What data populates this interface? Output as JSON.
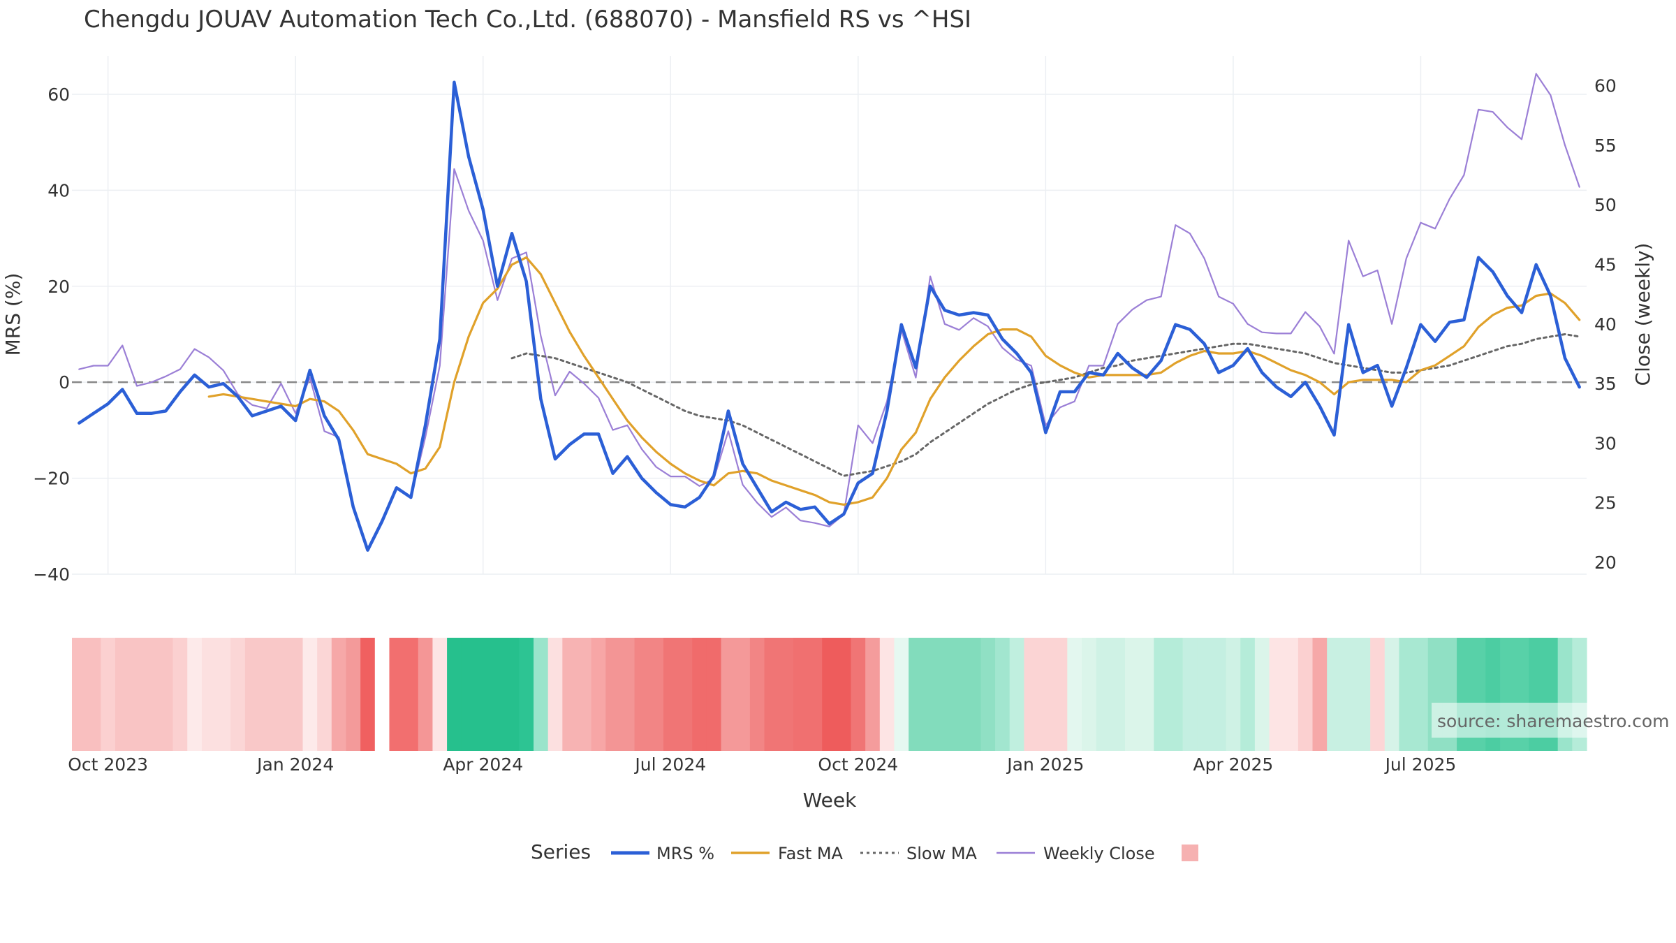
{
  "chart_data": {
    "type": "line",
    "title": "Chengdu JOUAV Automation Tech Co.,Ltd. (688070) - Mansfield RS vs ^HSI",
    "xlabel": "Week",
    "ylabel_left": "MRS (%)",
    "ylabel_right": "Close (weekly)",
    "ylim_left": [
      -40,
      68
    ],
    "ylim_right": [
      19,
      62.5
    ],
    "y_ticks_left": [
      "60",
      "40",
      "20",
      "0",
      "−20",
      "−40"
    ],
    "y_tick_values_left": [
      60,
      40,
      20,
      0,
      -20,
      -40
    ],
    "y_ticks_right": [
      "60",
      "55",
      "50",
      "45",
      "40",
      "35",
      "30",
      "25",
      "20"
    ],
    "y_tick_values_right": [
      60,
      55,
      50,
      45,
      40,
      35,
      30,
      25,
      20
    ],
    "x_ticks": [
      "Oct 2023",
      "Jan 2024",
      "Apr 2024",
      "Jul 2024",
      "Oct 2024",
      "Jan 2025",
      "Apr 2025",
      "Jul 2025"
    ],
    "x_tick_weeks": [
      2,
      15,
      28,
      41,
      54,
      67,
      80,
      93
    ],
    "grid": true,
    "zero_line": true,
    "source": "source: sharemaestro.com",
    "legend": {
      "title": "Series",
      "position": "bottom",
      "items": [
        "MRS %",
        "Fast MA",
        "Slow MA",
        "Weekly Close",
        ""
      ]
    },
    "weeks_count": 105,
    "series": [
      {
        "name": "MRS %",
        "color": "#2b5fd6",
        "axis": "left",
        "values": [
          -8.5,
          -6.5,
          -4.5,
          -1.5,
          -6.5,
          -6.5,
          -6,
          -2,
          1.5,
          -1,
          -0.3,
          -3,
          -7,
          -6,
          -5,
          -8,
          2.5,
          -7,
          -12,
          -26,
          -35,
          -29,
          -22,
          -24,
          -9,
          9,
          62.5,
          47,
          36,
          20,
          31,
          21,
          -3.5,
          -16,
          -13,
          -10.8,
          -10.8,
          -19,
          -15.5,
          -20,
          -23,
          -25.5,
          -26,
          -24,
          -19.5,
          -6,
          -17,
          -22,
          -27,
          -25,
          -26.5,
          -26,
          -29.5,
          -27.5,
          -21,
          -19,
          -6,
          12,
          3,
          20,
          15,
          14,
          14.5,
          14,
          9,
          6,
          2,
          -10.5,
          -2,
          -2,
          2,
          1.5,
          6,
          3,
          1,
          4.5,
          12,
          11,
          8,
          2,
          3.5,
          7,
          2,
          -1,
          -3,
          0,
          -5,
          -11,
          12,
          2,
          3.5,
          -5,
          3,
          12,
          8.5,
          12.5,
          13,
          26,
          23,
          18,
          14.5,
          24.5,
          18,
          5,
          -1
        ]
      },
      {
        "name": "Fast MA",
        "color": "#e0a12a",
        "axis": "left",
        "values": [
          null,
          null,
          null,
          null,
          null,
          null,
          null,
          null,
          null,
          -3,
          -2.5,
          -3,
          -3.5,
          -4,
          -4.5,
          -5,
          -3.5,
          -4,
          -6,
          -10,
          -15,
          -16,
          -17,
          -19,
          -18,
          -13.5,
          0,
          9.5,
          16.5,
          19.5,
          24.5,
          26,
          22.5,
          16.5,
          10.5,
          5.5,
          1,
          -3.5,
          -8,
          -11.5,
          -14.5,
          -17,
          -19,
          -20.5,
          -21.5,
          -19,
          -18.5,
          -19,
          -20.5,
          -21.5,
          -22.5,
          -23.5,
          -25,
          -25.5,
          -25,
          -24,
          -20,
          -14,
          -10.5,
          -3.5,
          1,
          4.5,
          7.5,
          10,
          11,
          11,
          9.5,
          5.5,
          3.5,
          2,
          1,
          1.5,
          1.5,
          1.5,
          1.5,
          2,
          4,
          5.5,
          6.5,
          6,
          6,
          6.5,
          5.5,
          4,
          2.5,
          1.5,
          0,
          -2.5,
          0,
          0.5,
          0.5,
          0.5,
          0,
          2.5,
          3.5,
          5.5,
          7.5,
          11.5,
          14,
          15.5,
          16,
          18,
          18.5,
          16.5,
          13
        ]
      },
      {
        "name": "Slow MA",
        "color": "#666666",
        "axis": "left",
        "values": [
          null,
          null,
          null,
          null,
          null,
          null,
          null,
          null,
          null,
          null,
          null,
          null,
          null,
          null,
          null,
          null,
          null,
          null,
          null,
          null,
          null,
          null,
          null,
          null,
          null,
          null,
          null,
          null,
          null,
          null,
          5,
          6,
          5.5,
          5,
          4,
          3,
          2,
          1,
          0,
          -1.5,
          -3,
          -4.5,
          -6,
          -7,
          -7.5,
          -8,
          -9,
          -10.5,
          -12,
          -13.5,
          -15,
          -16.5,
          -18,
          -19.5,
          -19,
          -18.5,
          -17.5,
          -16.5,
          -15,
          -12.5,
          -10.5,
          -8.5,
          -6.5,
          -4.5,
          -3,
          -1.5,
          -0.5,
          0,
          0.5,
          1,
          2,
          3,
          3.5,
          4.5,
          5,
          5.5,
          6,
          6.5,
          7,
          7.5,
          8,
          8,
          7.5,
          7,
          6.5,
          6,
          5,
          4,
          3.5,
          3,
          2.5,
          2,
          2,
          2.5,
          3,
          3.5,
          4.5,
          5.5,
          6.5,
          7.5,
          8,
          9,
          9.5,
          10,
          9.5
        ]
      },
      {
        "name": "Weekly Close",
        "color": "#9b7fd6",
        "axis": "right",
        "values": [
          36.2,
          36.5,
          36.5,
          38.2,
          34.8,
          35.1,
          35.6,
          36.2,
          37.9,
          37.2,
          36.1,
          34.1,
          33.2,
          32.9,
          35.0,
          32.5,
          35.5,
          31.0,
          30.5,
          24.5,
          21.1,
          23.6,
          26.2,
          25.4,
          30.5,
          36.5,
          53.0,
          49.5,
          47.0,
          42.0,
          45.5,
          46.0,
          39.0,
          34.0,
          36.0,
          35.0,
          33.8,
          31.1,
          31.5,
          29.5,
          28.0,
          27.2,
          27.2,
          26.4,
          27.0,
          31.0,
          26.5,
          25.0,
          23.8,
          24.6,
          23.5,
          23.3,
          23.0,
          24.0,
          31.5,
          30.0,
          33.5,
          39.5,
          35.5,
          44.0,
          40.0,
          39.5,
          40.5,
          39.8,
          38.0,
          37.0,
          36.5,
          31.5,
          33.0,
          33.5,
          36.5,
          36.5,
          40.0,
          41.2,
          42.0,
          42.3,
          48.3,
          47.6,
          45.5,
          42.3,
          41.7,
          40.0,
          39.3,
          39.2,
          39.2,
          41.0,
          39.8,
          37.5,
          47.0,
          44.0,
          44.5,
          40.0,
          45.5,
          48.5,
          48.0,
          50.5,
          52.5,
          58.0,
          57.8,
          56.5,
          55.5,
          61.0,
          59.2,
          55.0,
          51.5
        ]
      }
    ],
    "heatmap": {
      "colors": [
        "#f9bfbf",
        "#f9bfbf",
        "#fbd0d0",
        "#f9c4c4",
        "#f9c4c4",
        "#f9c4c4",
        "#f9c4c4",
        "#fbd0d0",
        "#fdeaea",
        "#fce0e0",
        "#fce0e0",
        "#fbd6d6",
        "#f9c8c8",
        "#f9c8c8",
        "#f9c8c8",
        "#f9c8c8",
        "#fdeaea",
        "#fbd6d6",
        "#f6a8a8",
        "#f39a9a",
        "#f06060",
        "#ffffff",
        "#f26f6f",
        "#f26f6f",
        "#f49696",
        "#fde4e4",
        "#26c08d",
        "#26c08d",
        "#26c08d",
        "#26c08d",
        "#26c08d",
        "#2dc493",
        "#9ae4cb",
        "#fce0e0",
        "#f7b3b3",
        "#f7b3b3",
        "#f7a6a6",
        "#f39595",
        "#f39595",
        "#f28585",
        "#f28585",
        "#f07575",
        "#f07575",
        "#f06b6b",
        "#f06b6b",
        "#f49999",
        "#f49999",
        "#f28585",
        "#f07575",
        "#f07575",
        "#f07070",
        "#f07070",
        "#ee5c5c",
        "#ee5c5c",
        "#f07575",
        "#f49c9c",
        "#fde4e4",
        "#e6f8f1",
        "#82dcbc",
        "#82dcbc",
        "#82dcbc",
        "#82dcbc",
        "#82dcbc",
        "#90e0c4",
        "#a2e6cf",
        "#c0efdf",
        "#fbd4d4",
        "#fbd4d4",
        "#fbd4d4",
        "#e3f7ef",
        "#dbf5ea",
        "#cff2e5",
        "#cff2e5",
        "#dbf5ea",
        "#dbf5ea",
        "#b5ecd9",
        "#b5ecd9",
        "#c4efe1",
        "#c4efe1",
        "#c4efe1",
        "#cff2e5",
        "#b5ecd9",
        "#dbf5ea",
        "#fde4e4",
        "#fde4e4",
        "#fbd0d0",
        "#f6a8a8",
        "#c8f0e2",
        "#c8f0e2",
        "#c8f0e2",
        "#fcd6d6",
        "#d6f3e8",
        "#a8e8d2",
        "#a8e8d2",
        "#90e0c4",
        "#90e0c4",
        "#58d1a8",
        "#58d1a8",
        "#4ccda2",
        "#58d1a8",
        "#58d1a8",
        "#4ccda2",
        "#4ccda2",
        "#9ae4cb",
        "#b5ecd9"
      ]
    }
  }
}
